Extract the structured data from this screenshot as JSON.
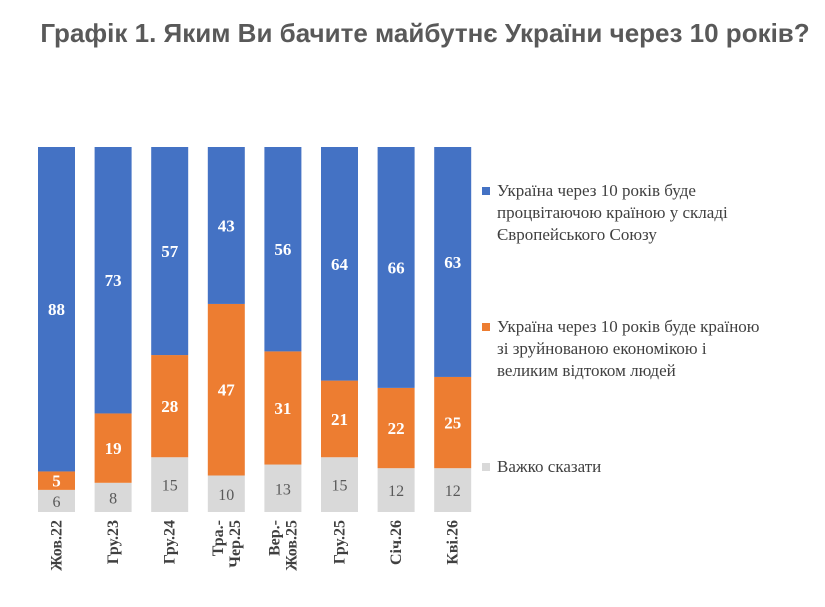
{
  "chart_data": {
    "type": "bar",
    "stacked": true,
    "title": "Графік 1. Яким Ви бачите майбутнє України через 10 років?",
    "categories": [
      [
        "Жов.22"
      ],
      [
        "Гру.23"
      ],
      [
        "Гру.24"
      ],
      [
        "Тра.-",
        "Чер.25"
      ],
      [
        "Вер.-",
        "Жов.25"
      ],
      [
        "Гру.25"
      ],
      [
        "Січ.26"
      ],
      [
        "Кві.26"
      ]
    ],
    "series": [
      {
        "name": [
          "Україна через 10 років буде",
          "процвітаючою країною у складі",
          "Європейського Союзу"
        ],
        "color": "#4472C4",
        "values": [
          88,
          73,
          57,
          43,
          56,
          64,
          66,
          63
        ]
      },
      {
        "name": [
          "Україна через 10 років буде країною",
          "зі зруйнованою економікою і",
          "великим відтоком людей"
        ],
        "color": "#ED7D31",
        "values": [
          5,
          19,
          28,
          47,
          31,
          21,
          22,
          25
        ]
      },
      {
        "name": [
          "Важко сказати"
        ],
        "color": "#D9D9D9",
        "values": [
          6,
          8,
          15,
          10,
          13,
          15,
          12,
          12
        ]
      }
    ],
    "ylim": [
      0,
      100
    ],
    "legend_position": "right"
  }
}
